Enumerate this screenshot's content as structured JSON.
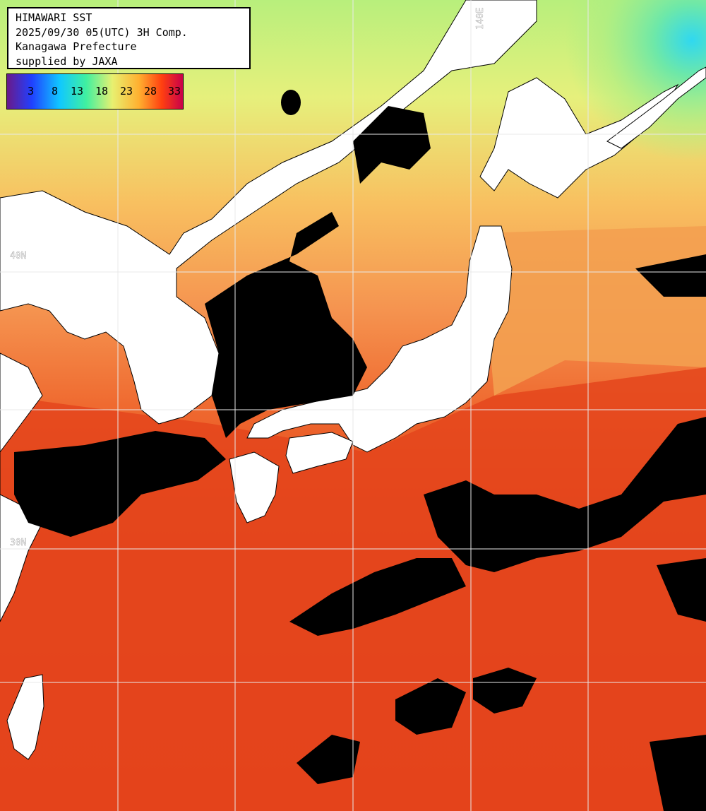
{
  "header": {
    "line1": "HIMAWARI SST",
    "line2": "2025/09/30 05(UTC) 3H Comp.",
    "line3": "Kanagawa Prefecture",
    "line4": "supplied by JAXA"
  },
  "legend": {
    "labels": [
      "3",
      "8",
      "13",
      "18",
      "23",
      "28",
      "33"
    ],
    "colors": [
      "#6a1a8a",
      "#2040ff",
      "#10c8ff",
      "#40f0a0",
      "#e8f070",
      "#ffb030",
      "#ff4010",
      "#c8004a"
    ]
  },
  "grid": {
    "lat_labels": [
      "40N",
      "30N"
    ],
    "lon_labels": [
      "140E"
    ]
  },
  "colors": {
    "land": "#ffffff",
    "cloud": "#000000",
    "warm_sea": "#e3401a",
    "mild_sea": "#f39a4a",
    "cool_sea": "#c7ef80",
    "cold_sea": "#7ceb9c"
  }
}
